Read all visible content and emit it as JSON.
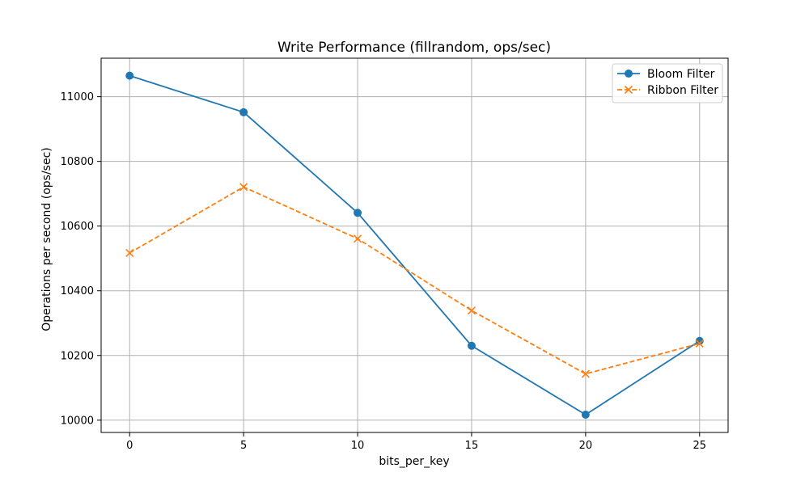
{
  "chart_data": {
    "type": "line",
    "title": "Write Performance (fillrandom, ops/sec)",
    "xlabel": "bits_per_key",
    "ylabel": "Operations per second (ops/sec)",
    "x": [
      0,
      5,
      10,
      15,
      20,
      25
    ],
    "xticks": [
      "0",
      "5",
      "10",
      "15",
      "20",
      "25"
    ],
    "yticks": [
      "10000",
      "10200",
      "10400",
      "10600",
      "10800",
      "11000"
    ],
    "xlim": [
      -1.25,
      26.25
    ],
    "ylim": [
      9962,
      11119
    ],
    "grid": true,
    "legend_position": "top-right",
    "series": [
      {
        "name": "Bloom Filter",
        "values": [
          11065,
          10952,
          10641,
          10230,
          10017,
          10245
        ],
        "color": "#1f77b4",
        "marker": "circle",
        "linestyle": "solid"
      },
      {
        "name": "Ribbon Filter",
        "values": [
          10517,
          10721,
          10561,
          10339,
          10143,
          10237
        ],
        "color": "#ff7f0e",
        "marker": "x",
        "linestyle": "dashed"
      }
    ]
  }
}
